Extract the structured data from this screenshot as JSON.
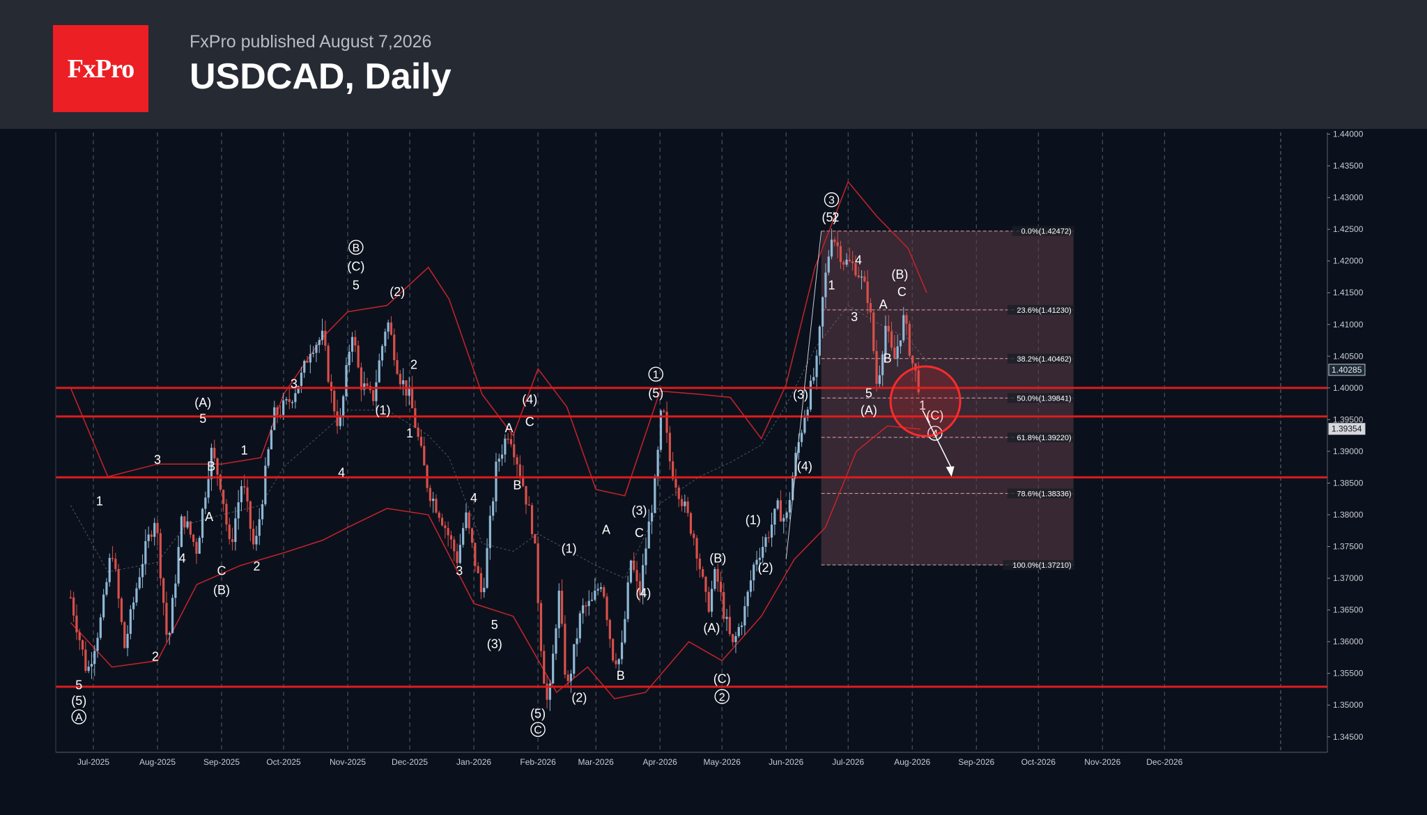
{
  "header": {
    "brand": "FxPro",
    "published": "FxPro published August 7,2026",
    "title": "USDCAD, Daily"
  },
  "colors": {
    "background": "#0b111c",
    "header": "#262a33",
    "brand_red": "#ec1f24",
    "bull_candle": "#8fb8d6",
    "bear_candle": "#d9504a",
    "bands": "#c8232a",
    "levels": "#e01c1c",
    "fib_zone": "#5c3d48"
  },
  "chart_data": {
    "type": "candlestick",
    "symbol": "USDCAD",
    "timeframe": "Daily",
    "ylim": [
      1.343,
      1.4405
    ],
    "x_tick_labels": [
      "Jul-2025",
      "Aug-2025",
      "Sep-2025",
      "Oct-2025",
      "Nov-2025",
      "Dec-2025",
      "Jan-2026",
      "Feb-2026",
      "Mar-2026",
      "Apr-2026",
      "May-2026",
      "Jun-2026",
      "Jul-2026",
      "Aug-2026",
      "Sep-2026",
      "Oct-2026",
      "Nov-2026",
      "Dec-2026"
    ],
    "y_tick_labels": [
      "1.44000",
      "1.43500",
      "1.43000",
      "1.42500",
      "1.42000",
      "1.41500",
      "1.41000",
      "1.40500",
      "1.40000",
      "1.39500",
      "1.39000",
      "1.38500",
      "1.38000",
      "1.37500",
      "1.37000",
      "1.36500",
      "1.36000",
      "1.35500",
      "1.35000",
      "1.34500"
    ],
    "price_tags": [
      {
        "label": "1.40285",
        "value": 1.40285
      },
      {
        "label": "1.39354",
        "value": 1.39354
      }
    ],
    "horizontal_levels": [
      1.4,
      1.3955,
      1.3859,
      1.3529
    ],
    "price_path": [
      [
        "2025-06-20",
        1.367
      ],
      [
        "2025-06-28",
        1.355
      ],
      [
        "2025-07-05",
        1.364
      ],
      [
        "2025-07-10",
        1.375
      ],
      [
        "2025-07-16",
        1.359
      ],
      [
        "2025-07-24",
        1.372
      ],
      [
        "2025-07-31",
        1.38
      ],
      [
        "2025-08-06",
        1.359
      ],
      [
        "2025-08-13",
        1.38
      ],
      [
        "2025-08-20",
        1.3745
      ],
      [
        "2025-08-27",
        1.39
      ],
      [
        "2025-09-01",
        1.3845
      ],
      [
        "2025-09-05",
        1.3745
      ],
      [
        "2025-09-11",
        1.3855
      ],
      [
        "2025-09-17",
        1.374
      ],
      [
        "2025-09-26",
        1.3955
      ],
      [
        "2025-10-03",
        1.3975
      ],
      [
        "2025-10-10",
        1.402
      ],
      [
        "2025-10-14",
        1.4065
      ],
      [
        "2025-10-20",
        1.408
      ],
      [
        "2025-10-24",
        1.399
      ],
      [
        "2025-10-28",
        1.3935
      ],
      [
        "2025-11-03",
        1.4095
      ],
      [
        "2025-11-07",
        1.401
      ],
      [
        "2025-11-13",
        1.398
      ],
      [
        "2025-11-20",
        1.411
      ],
      [
        "2025-11-26",
        1.402
      ],
      [
        "2025-12-01",
        1.3985
      ],
      [
        "2025-12-10",
        1.384
      ],
      [
        "2025-12-16",
        1.38
      ],
      [
        "2025-12-24",
        1.373
      ],
      [
        "2025-12-28",
        1.38
      ],
      [
        "2026-01-05",
        1.367
      ],
      [
        "2026-01-12",
        1.388
      ],
      [
        "2026-01-18",
        1.3935
      ],
      [
        "2026-01-24",
        1.386
      ],
      [
        "2026-01-30",
        1.377
      ],
      [
        "2026-02-03",
        1.357
      ],
      [
        "2026-02-06",
        1.349
      ],
      [
        "2026-02-11",
        1.368
      ],
      [
        "2026-02-15",
        1.352
      ],
      [
        "2026-02-22",
        1.365
      ],
      [
        "2026-02-27",
        1.366
      ],
      [
        "2026-03-04",
        1.37
      ],
      [
        "2026-03-09",
        1.358
      ],
      [
        "2026-03-13",
        1.357
      ],
      [
        "2026-03-18",
        1.373
      ],
      [
        "2026-03-22",
        1.367
      ],
      [
        "2026-03-26",
        1.377
      ],
      [
        "2026-03-30",
        1.3855
      ],
      [
        "2026-04-02",
        1.3975
      ],
      [
        "2026-04-06",
        1.388
      ],
      [
        "2026-04-12",
        1.382
      ],
      [
        "2026-04-18",
        1.376
      ],
      [
        "2026-04-24",
        1.365
      ],
      [
        "2026-04-28",
        1.371
      ],
      [
        "2026-05-02",
        1.3645
      ],
      [
        "2026-05-06",
        1.359
      ],
      [
        "2026-05-12",
        1.365
      ],
      [
        "2026-05-17",
        1.373
      ],
      [
        "2026-05-22",
        1.376
      ],
      [
        "2026-05-28",
        1.381
      ],
      [
        "2026-06-01",
        1.379
      ],
      [
        "2026-06-05",
        1.388
      ],
      [
        "2026-06-10",
        1.396
      ],
      [
        "2026-06-16",
        1.404
      ],
      [
        "2026-06-19",
        1.415
      ],
      [
        "2026-06-23",
        1.4245
      ],
      [
        "2026-06-29",
        1.42
      ],
      [
        "2026-07-05",
        1.419
      ],
      [
        "2026-07-11",
        1.414
      ],
      [
        "2026-07-15",
        1.4
      ],
      [
        "2026-07-19",
        1.41
      ],
      [
        "2026-07-23",
        1.404
      ],
      [
        "2026-07-28",
        1.411
      ],
      [
        "2026-08-01",
        1.404
      ],
      [
        "2026-08-05",
        1.3995
      ]
    ],
    "upper_band": [
      [
        "2025-06-20",
        1.4
      ],
      [
        "2025-07-08",
        1.386
      ],
      [
        "2025-08-01",
        1.388
      ],
      [
        "2025-08-15",
        1.388
      ],
      [
        "2025-09-01",
        1.388
      ],
      [
        "2025-09-20",
        1.389
      ],
      [
        "2025-10-01",
        1.399
      ],
      [
        "2025-10-20",
        1.408
      ],
      [
        "2025-11-01",
        1.412
      ],
      [
        "2025-11-20",
        1.413
      ],
      [
        "2025-12-10",
        1.419
      ],
      [
        "2025-12-20",
        1.414
      ],
      [
        "2026-01-05",
        1.399
      ],
      [
        "2026-01-20",
        1.3925
      ],
      [
        "2026-02-01",
        1.403
      ],
      [
        "2026-02-15",
        1.397
      ],
      [
        "2026-03-01",
        1.384
      ],
      [
        "2026-03-15",
        1.383
      ],
      [
        "2026-04-01",
        1.3995
      ],
      [
        "2026-04-20",
        1.399
      ],
      [
        "2026-05-05",
        1.3985
      ],
      [
        "2026-05-20",
        1.392
      ],
      [
        "2026-06-01",
        1.4005
      ],
      [
        "2026-06-15",
        1.419
      ],
      [
        "2026-07-01",
        1.4325
      ],
      [
        "2026-07-15",
        1.427
      ],
      [
        "2026-07-30",
        1.422
      ],
      [
        "2026-08-08",
        1.415
      ]
    ],
    "lower_band": [
      [
        "2025-06-20",
        1.363
      ],
      [
        "2025-07-10",
        1.356
      ],
      [
        "2025-08-01",
        1.357
      ],
      [
        "2025-08-20",
        1.369
      ],
      [
        "2025-09-10",
        1.372
      ],
      [
        "2025-10-01",
        1.374
      ],
      [
        "2025-10-20",
        1.376
      ],
      [
        "2025-11-01",
        1.378
      ],
      [
        "2025-11-20",
        1.381
      ],
      [
        "2025-12-10",
        1.38
      ],
      [
        "2026-01-01",
        1.366
      ],
      [
        "2026-01-20",
        1.364
      ],
      [
        "2026-02-10",
        1.352
      ],
      [
        "2026-02-25",
        1.356
      ],
      [
        "2026-03-10",
        1.351
      ],
      [
        "2026-03-25",
        1.352
      ],
      [
        "2026-04-15",
        1.36
      ],
      [
        "2026-05-01",
        1.357
      ],
      [
        "2026-05-20",
        1.364
      ],
      [
        "2026-06-05",
        1.373
      ],
      [
        "2026-06-20",
        1.378
      ],
      [
        "2026-07-05",
        1.39
      ],
      [
        "2026-07-20",
        1.394
      ],
      [
        "2026-08-05",
        1.3935
      ]
    ],
    "fibonacci": {
      "start_date": "2026-06-18",
      "end_date": "2026-10-18",
      "levels": [
        {
          "label": "0.0%(1.42472)",
          "value": 1.42472
        },
        {
          "label": "23.6%(1.41230)",
          "value": 1.4123
        },
        {
          "label": "38.2%(1.40462)",
          "value": 1.40462
        },
        {
          "label": "50.0%(1.39841)",
          "value": 1.39841
        },
        {
          "label": "61.8%(1.39220)",
          "value": 1.3922
        },
        {
          "label": "78.6%(1.38336)",
          "value": 1.38336
        },
        {
          "label": "100.0%(1.37210)",
          "value": 1.3721
        }
      ]
    },
    "wave_labels": [
      {
        "t": "5",
        "d": "2025-06-24",
        "v": 1.3525
      },
      {
        "t": "(5)",
        "d": "2025-06-24",
        "v": 1.35
      },
      {
        "t": "A",
        "d": "2025-06-24",
        "v": 1.3475,
        "circled": true
      },
      {
        "t": "1",
        "d": "2025-07-04",
        "v": 1.3815
      },
      {
        "t": "2",
        "d": "2025-07-31",
        "v": 1.357
      },
      {
        "t": "3",
        "d": "2025-08-01",
        "v": 1.388
      },
      {
        "t": "4",
        "d": "2025-08-13",
        "v": 1.3725
      },
      {
        "t": "(A)",
        "d": "2025-08-23",
        "v": 1.397
      },
      {
        "t": "5",
        "d": "2025-08-23",
        "v": 1.3945
      },
      {
        "t": "B",
        "d": "2025-08-27",
        "v": 1.387
      },
      {
        "t": "A",
        "d": "2025-08-26",
        "v": 1.379
      },
      {
        "t": "1",
        "d": "2025-09-12",
        "v": 1.3895
      },
      {
        "t": "C",
        "d": "2025-09-01",
        "v": 1.3705
      },
      {
        "t": "(B)",
        "d": "2025-09-01",
        "v": 1.3675
      },
      {
        "t": "2",
        "d": "2025-09-18",
        "v": 1.3712
      },
      {
        "t": "3",
        "d": "2025-10-06",
        "v": 1.4
      },
      {
        "t": "4",
        "d": "2025-10-29",
        "v": 1.386
      },
      {
        "t": "B",
        "d": "2025-11-05",
        "v": 1.4215,
        "circled": true
      },
      {
        "t": "(C)",
        "d": "2025-11-05",
        "v": 1.4185
      },
      {
        "t": "5",
        "d": "2025-11-05",
        "v": 1.4155
      },
      {
        "t": "(2)",
        "d": "2025-11-25",
        "v": 1.4145
      },
      {
        "t": "(1)",
        "d": "2025-11-18",
        "v": 1.3958
      },
      {
        "t": "1",
        "d": "2025-12-01",
        "v": 1.3922
      },
      {
        "t": "2",
        "d": "2025-12-03",
        "v": 1.403
      },
      {
        "t": "4",
        "d": "2026-01-01",
        "v": 1.382
      },
      {
        "t": "3",
        "d": "2025-12-25",
        "v": 1.3705
      },
      {
        "t": "5",
        "d": "2026-01-11",
        "v": 1.362
      },
      {
        "t": "(3)",
        "d": "2026-01-11",
        "v": 1.359
      },
      {
        "t": "A",
        "d": "2026-01-18",
        "v": 1.393
      },
      {
        "t": "(4)",
        "d": "2026-01-28",
        "v": 1.3975
      },
      {
        "t": "C",
        "d": "2026-01-28",
        "v": 1.394
      },
      {
        "t": "B",
        "d": "2026-01-22",
        "v": 1.384
      },
      {
        "t": "(1)",
        "d": "2026-02-16",
        "v": 1.374
      },
      {
        "t": "(2)",
        "d": "2026-02-21",
        "v": 1.3505
      },
      {
        "t": "(5)",
        "d": "2026-02-01",
        "v": 1.348
      },
      {
        "t": "C",
        "d": "2026-02-01",
        "v": 1.3455,
        "circled": true
      },
      {
        "t": "A",
        "d": "2026-03-06",
        "v": 1.377
      },
      {
        "t": "B",
        "d": "2026-03-13",
        "v": 1.354
      },
      {
        "t": "(3)",
        "d": "2026-03-22",
        "v": 1.38
      },
      {
        "t": "C",
        "d": "2026-03-22",
        "v": 1.3765
      },
      {
        "t": "(4)",
        "d": "2026-03-24",
        "v": 1.367
      },
      {
        "t": "1",
        "d": "2026-03-30",
        "v": 1.4015,
        "circled": true
      },
      {
        "t": "(5)",
        "d": "2026-03-30",
        "v": 1.3985
      },
      {
        "t": "(B)",
        "d": "2026-04-29",
        "v": 1.3725
      },
      {
        "t": "(A)",
        "d": "2026-04-26",
        "v": 1.3615
      },
      {
        "t": "(C)",
        "d": "2026-05-01",
        "v": 1.3535
      },
      {
        "t": "2",
        "d": "2026-05-01",
        "v": 1.3507,
        "circled": true
      },
      {
        "t": "(1)",
        "d": "2026-05-16",
        "v": 1.3785
      },
      {
        "t": "(2)",
        "d": "2026-05-22",
        "v": 1.371
      },
      {
        "t": "(3)",
        "d": "2026-06-08",
        "v": 1.3983
      },
      {
        "t": "(4)",
        "d": "2026-06-10",
        "v": 1.387
      },
      {
        "t": "3",
        "d": "2026-06-23",
        "v": 1.429,
        "circled": true
      },
      {
        "t": "(5)",
        "d": "2026-06-22",
        "v": 1.4262
      },
      {
        "t": "2",
        "d": "2026-06-25",
        "v": 1.4262
      },
      {
        "t": "1",
        "d": "2026-06-23",
        "v": 1.4155
      },
      {
        "t": "4",
        "d": "2026-07-06",
        "v": 1.4195
      },
      {
        "t": "3",
        "d": "2026-07-04",
        "v": 1.4105
      },
      {
        "t": "(B)",
        "d": "2026-07-26",
        "v": 1.4172
      },
      {
        "t": "C",
        "d": "2026-07-27",
        "v": 1.4145
      },
      {
        "t": "A",
        "d": "2026-07-18",
        "v": 1.4125
      },
      {
        "t": "B",
        "d": "2026-07-20",
        "v": 1.404
      },
      {
        "t": "5",
        "d": "2026-07-11",
        "v": 1.3985
      },
      {
        "t": "(A)",
        "d": "2026-07-11",
        "v": 1.3958
      },
      {
        "t": "1",
        "d": "2026-08-06",
        "v": 1.3966
      },
      {
        "t": "(C)",
        "d": "2026-08-12",
        "v": 1.395
      },
      {
        "t": "4",
        "d": "2026-08-12",
        "v": 1.3922,
        "circled": true
      }
    ],
    "projection": {
      "from_date": "2026-08-06",
      "from": 1.3965,
      "to_date": "2026-08-20",
      "to": 1.386
    },
    "highlight_circle": {
      "date": "2026-08-06",
      "value": 1.399
    }
  }
}
